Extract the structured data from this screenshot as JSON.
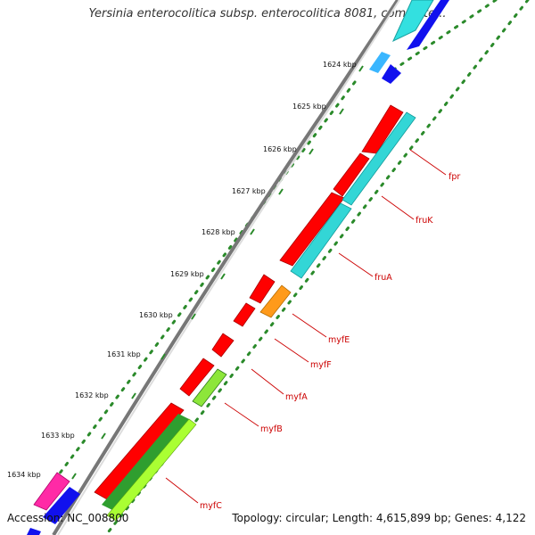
{
  "title": "Yersinia enterocolitica subsp. enterocolitica 8081, complete...",
  "footer": {
    "accession": "Accession: NC_008800",
    "stats": "Topology: circular; Length: 4,615,899 bp; Genes: 4,122"
  },
  "colors": {
    "backbone": "#777777",
    "ticks": "#2a8a2a",
    "label_red": "#cc0000",
    "red": "#ff0000",
    "cyan": "#33d6d6",
    "orange": "#ff9a1a",
    "dark_green": "#2f9e2f",
    "light_green": "#aaff33",
    "blue": "#1111ee",
    "magenta": "#ff2aa6"
  },
  "tick_labels": [
    {
      "kbp": 1624,
      "label": "1624 kbp"
    },
    {
      "kbp": 1625,
      "label": "1625 kbp"
    },
    {
      "kbp": 1626,
      "label": "1626 kbp"
    },
    {
      "kbp": 1627,
      "label": "1627 kbp"
    },
    {
      "kbp": 1628,
      "label": "1628 kbp"
    },
    {
      "kbp": 1629,
      "label": "1629 kbp"
    },
    {
      "kbp": 1630,
      "label": "1630 kbp"
    },
    {
      "kbp": 1631,
      "label": "1631 kbp"
    },
    {
      "kbp": 1632,
      "label": "1632 kbp"
    },
    {
      "kbp": 1633,
      "label": "1633 kbp"
    },
    {
      "kbp": 1634,
      "label": "1634 kbp"
    }
  ],
  "gene_labels": [
    "fpr",
    "fruK",
    "fruA",
    "myfE",
    "myfF",
    "myfA",
    "myfB",
    "myfC"
  ]
}
